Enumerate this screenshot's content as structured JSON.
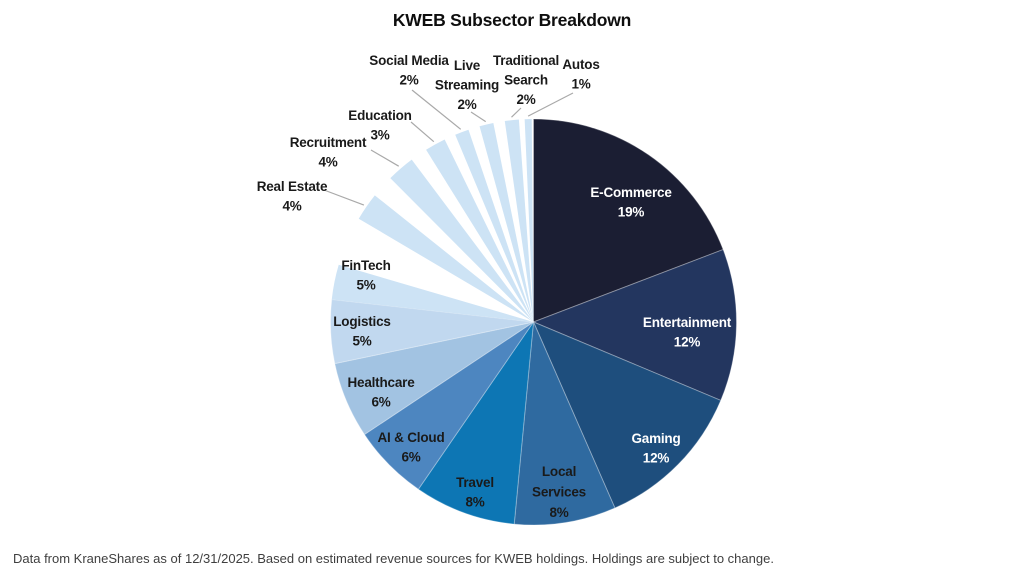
{
  "chart_data": {
    "type": "pie",
    "title": "KWEB Subsector Breakdown",
    "unit": "%",
    "legend": "none",
    "label_colors": {
      "light": "#ffffff",
      "dark": "#1a1a1a"
    },
    "leader_line_color": "#a9a9a9",
    "slices": [
      {
        "label": "E-Commerce",
        "value": 19,
        "color": "#1b1e33",
        "label_style": "light",
        "detached": false
      },
      {
        "label": "Entertainment",
        "value": 12,
        "color": "#23365f",
        "label_style": "light",
        "detached": false
      },
      {
        "label": "Gaming",
        "value": 12,
        "color": "#1e4e7d",
        "label_style": "light",
        "detached": false
      },
      {
        "label": "Local Services",
        "value": 8,
        "color": "#2f6aa0",
        "label_style": "dark",
        "detached": false
      },
      {
        "label": "Travel",
        "value": 8,
        "color": "#0d76b4",
        "label_style": "dark",
        "detached": false
      },
      {
        "label": "AI & Cloud",
        "value": 6,
        "color": "#4d86c0",
        "label_style": "dark",
        "detached": false
      },
      {
        "label": "Healthcare",
        "value": 6,
        "color": "#a2c3e2",
        "label_style": "dark",
        "detached": false
      },
      {
        "label": "Logistics",
        "value": 5,
        "color": "#c1d8ef",
        "label_style": "dark",
        "detached": false
      },
      {
        "label": "FinTech",
        "value": 5,
        "color": "#cde3f5",
        "label_style": "dark",
        "detached": true
      },
      {
        "label": "Real Estate",
        "value": 4,
        "color": "#cde3f5",
        "label_style": "dark",
        "detached": true
      },
      {
        "label": "Recruitment",
        "value": 4,
        "color": "#cde3f5",
        "label_style": "dark",
        "detached": true
      },
      {
        "label": "Education",
        "value": 3,
        "color": "#cde3f5",
        "label_style": "dark",
        "detached": true
      },
      {
        "label": "Social Media",
        "value": 2,
        "color": "#cde3f5",
        "label_style": "dark",
        "detached": true
      },
      {
        "label": "Live Streaming",
        "value": 2,
        "color": "#cde3f5",
        "label_style": "dark",
        "detached": true
      },
      {
        "label": "Traditional Search",
        "value": 2,
        "color": "#cde3f5",
        "label_style": "dark",
        "detached": true
      },
      {
        "label": "Autos",
        "value": 1,
        "color": "#cde3f5",
        "label_style": "dark",
        "detached": true
      }
    ]
  },
  "footer": {
    "text": "Data from KraneShares as of 12/31/2025. Based on estimated revenue sources for KWEB holdings. Holdings are subject to change."
  }
}
